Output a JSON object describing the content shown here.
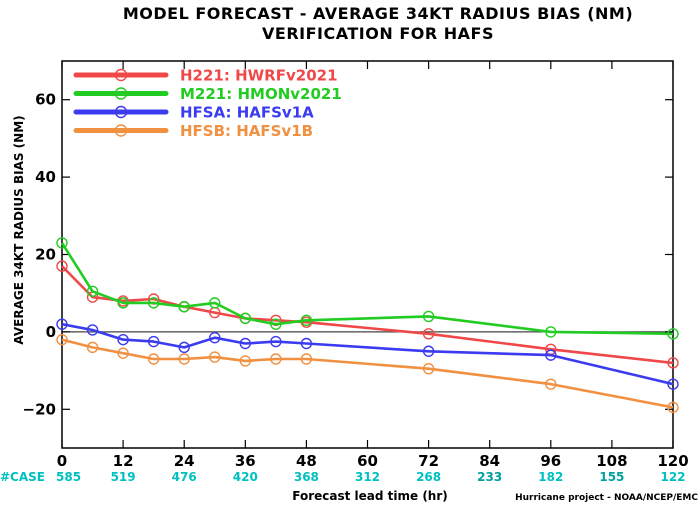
{
  "chart_data": {
    "type": "line",
    "title": "MODEL FORECAST - AVERAGE 34KT RADIUS BIAS (NM)",
    "subtitle": "VERIFICATION FOR HAFS",
    "xlabel": "Forecast lead time (hr)",
    "ylabel": "AVERAGE 34KT RADIUS BIAS (NM)",
    "xlim": [
      0,
      120
    ],
    "ylim": [
      -30,
      70
    ],
    "x_ticks": [
      0,
      12,
      24,
      36,
      48,
      60,
      72,
      84,
      96,
      108,
      120
    ],
    "y_ticks": [
      -20,
      0,
      20,
      40,
      60
    ],
    "zero_line": true,
    "legend_position": "top-left",
    "series": [
      {
        "name": "H221: HWRFv2021",
        "color": "#f04848",
        "x": [
          0,
          6,
          12,
          18,
          24,
          30,
          36,
          42,
          48,
          72,
          96,
          120
        ],
        "y": [
          17,
          9,
          8,
          8.5,
          6.5,
          5,
          3.5,
          3,
          2.5,
          -0.5,
          -4.5,
          -8
        ]
      },
      {
        "name": "M221: HMONv2021",
        "color": "#22cc22",
        "x": [
          0,
          6,
          12,
          18,
          24,
          30,
          36,
          42,
          48,
          72,
          96,
          120
        ],
        "y": [
          23,
          10.5,
          7.5,
          7.5,
          6.5,
          7.5,
          3.5,
          2,
          3,
          4,
          0,
          -0.5
        ]
      },
      {
        "name": "HFSA: HAFSv1A",
        "color": "#3b3bf0",
        "x": [
          0,
          6,
          12,
          18,
          24,
          30,
          36,
          42,
          48,
          72,
          96,
          120
        ],
        "y": [
          2,
          0.5,
          -2,
          -2.5,
          -4,
          -1.5,
          -3,
          -2.5,
          -3,
          -5,
          -6,
          -13.5
        ]
      },
      {
        "name": "HFSB: HAFSv1B",
        "color": "#f09040",
        "x": [
          0,
          6,
          12,
          18,
          24,
          30,
          36,
          42,
          48,
          72,
          96,
          120
        ],
        "y": [
          -2,
          -4,
          -5.5,
          -7,
          -7,
          -6.5,
          -7.5,
          -7,
          -7,
          -9.5,
          -13.5,
          -19.5
        ]
      }
    ],
    "case_counts": {
      "label": "#CASE",
      "x": [
        0,
        12,
        24,
        36,
        48,
        60,
        72,
        84,
        96,
        108,
        120
      ],
      "values": [
        "585",
        "519",
        "476",
        "420",
        "368",
        "312",
        "268",
        "233",
        "182",
        "155",
        "122"
      ],
      "label_color": "#00c0c0",
      "value_colors": [
        "#00c0c0",
        "#00c0c0",
        "#00c0c0",
        "#00c0c0",
        "#00c0c0",
        "#00c0c0",
        "#00c0c0",
        "#00a0a0",
        "#00c0c0",
        "#00a0a0",
        "#00c0c0"
      ]
    },
    "credit": "Hurricane project - NOAA/NCEP/EMC"
  }
}
